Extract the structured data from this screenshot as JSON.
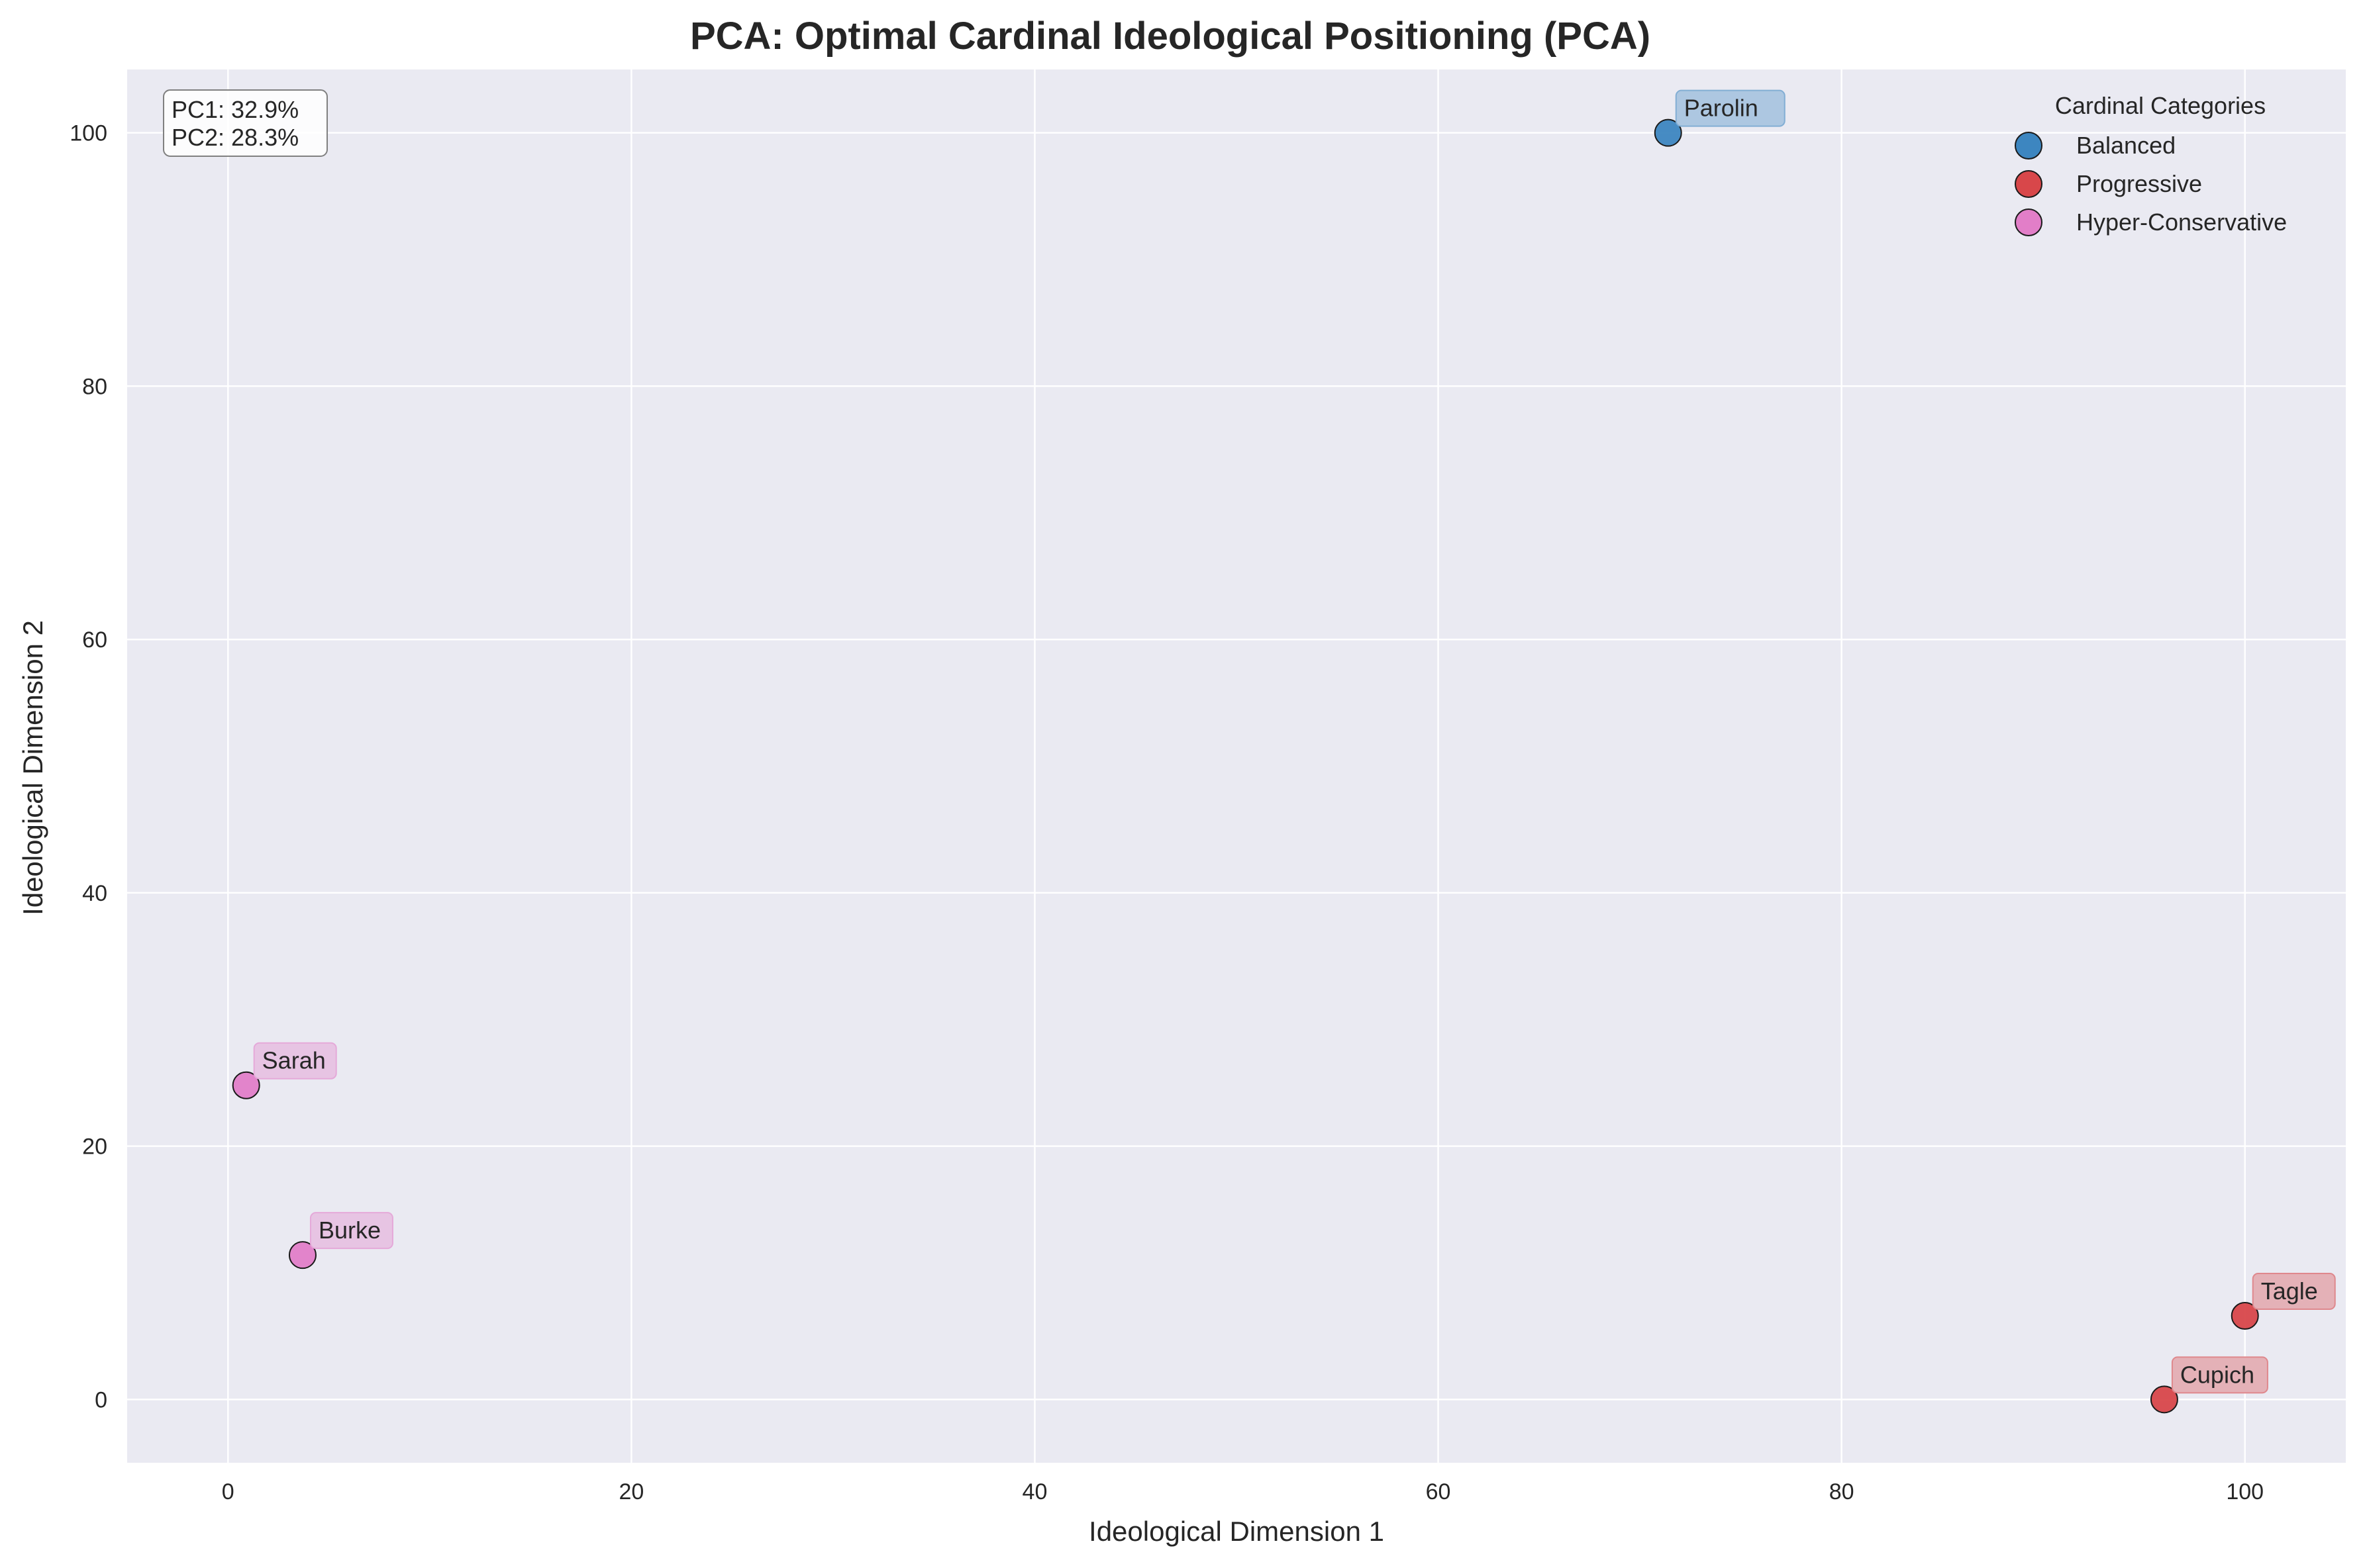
{
  "chart_data": {
    "type": "scatter",
    "title": "PCA: Optimal Cardinal Ideological Positioning (PCA)",
    "xlabel": "Ideological Dimension 1",
    "ylabel": "Ideological Dimension 2",
    "xlim": [
      -5,
      105
    ],
    "ylim": [
      -5,
      105
    ],
    "xticks": [
      0,
      20,
      40,
      60,
      80,
      100
    ],
    "yticks": [
      0,
      20,
      40,
      60,
      80,
      100
    ],
    "grid": true,
    "variance_box": {
      "pc1": "PC1: 32.9%",
      "pc2": "PC2: 28.3%"
    },
    "legend": {
      "title": "Cardinal Categories",
      "placement": "top-right",
      "entries": [
        {
          "label": "Balanced",
          "color": "#3d86c0"
        },
        {
          "label": "Progressive",
          "color": "#d8474a"
        },
        {
          "label": "Hyper-Conservative",
          "color": "#e27ec8"
        }
      ]
    },
    "points": [
      {
        "name": "Parolin",
        "category": "Balanced",
        "x": 71.4,
        "y": 100.0
      },
      {
        "name": "Sarah",
        "category": "Hyper-Conservative",
        "x": 0.9,
        "y": 24.8
      },
      {
        "name": "Burke",
        "category": "Hyper-Conservative",
        "x": 3.7,
        "y": 11.4
      },
      {
        "name": "Tagle",
        "category": "Progressive",
        "x": 100.0,
        "y": 6.6
      },
      {
        "name": "Cupich",
        "category": "Progressive",
        "x": 96.0,
        "y": 0.0
      }
    ]
  }
}
